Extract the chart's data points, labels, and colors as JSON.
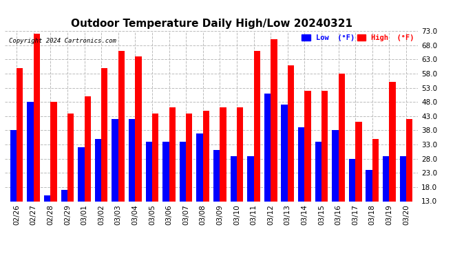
{
  "title": "Outdoor Temperature Daily High/Low 20240321",
  "copyright": "Copyright 2024 Cartronics.com",
  "legend_low": "Low  (°F)",
  "legend_high": "High  (°F)",
  "low_color": "#0000ff",
  "high_color": "#ff0000",
  "categories": [
    "02/26",
    "02/27",
    "02/28",
    "02/29",
    "03/01",
    "03/02",
    "03/03",
    "03/04",
    "03/05",
    "03/06",
    "03/07",
    "03/08",
    "03/09",
    "03/10",
    "03/11",
    "03/12",
    "03/13",
    "03/14",
    "03/15",
    "03/16",
    "03/17",
    "03/18",
    "03/19",
    "03/20"
  ],
  "low_values": [
    38,
    48,
    15,
    17,
    32,
    35,
    42,
    42,
    34,
    34,
    34,
    37,
    31,
    29,
    29,
    51,
    47,
    39,
    34,
    38,
    28,
    24,
    29,
    29
  ],
  "high_values": [
    60,
    72,
    48,
    44,
    50,
    60,
    66,
    64,
    44,
    46,
    44,
    45,
    46,
    46,
    66,
    70,
    61,
    52,
    52,
    58,
    41,
    35,
    55,
    42
  ],
  "ylim": [
    13.0,
    73.0
  ],
  "yticks": [
    13.0,
    18.0,
    23.0,
    28.0,
    33.0,
    38.0,
    43.0,
    48.0,
    53.0,
    58.0,
    63.0,
    68.0,
    73.0
  ],
  "bg_color": "#ffffff",
  "grid_color": "#bbbbbb",
  "title_fontsize": 11,
  "tick_fontsize": 7.5,
  "bar_width": 0.38,
  "figwidth": 6.9,
  "figheight": 3.75,
  "dpi": 100
}
